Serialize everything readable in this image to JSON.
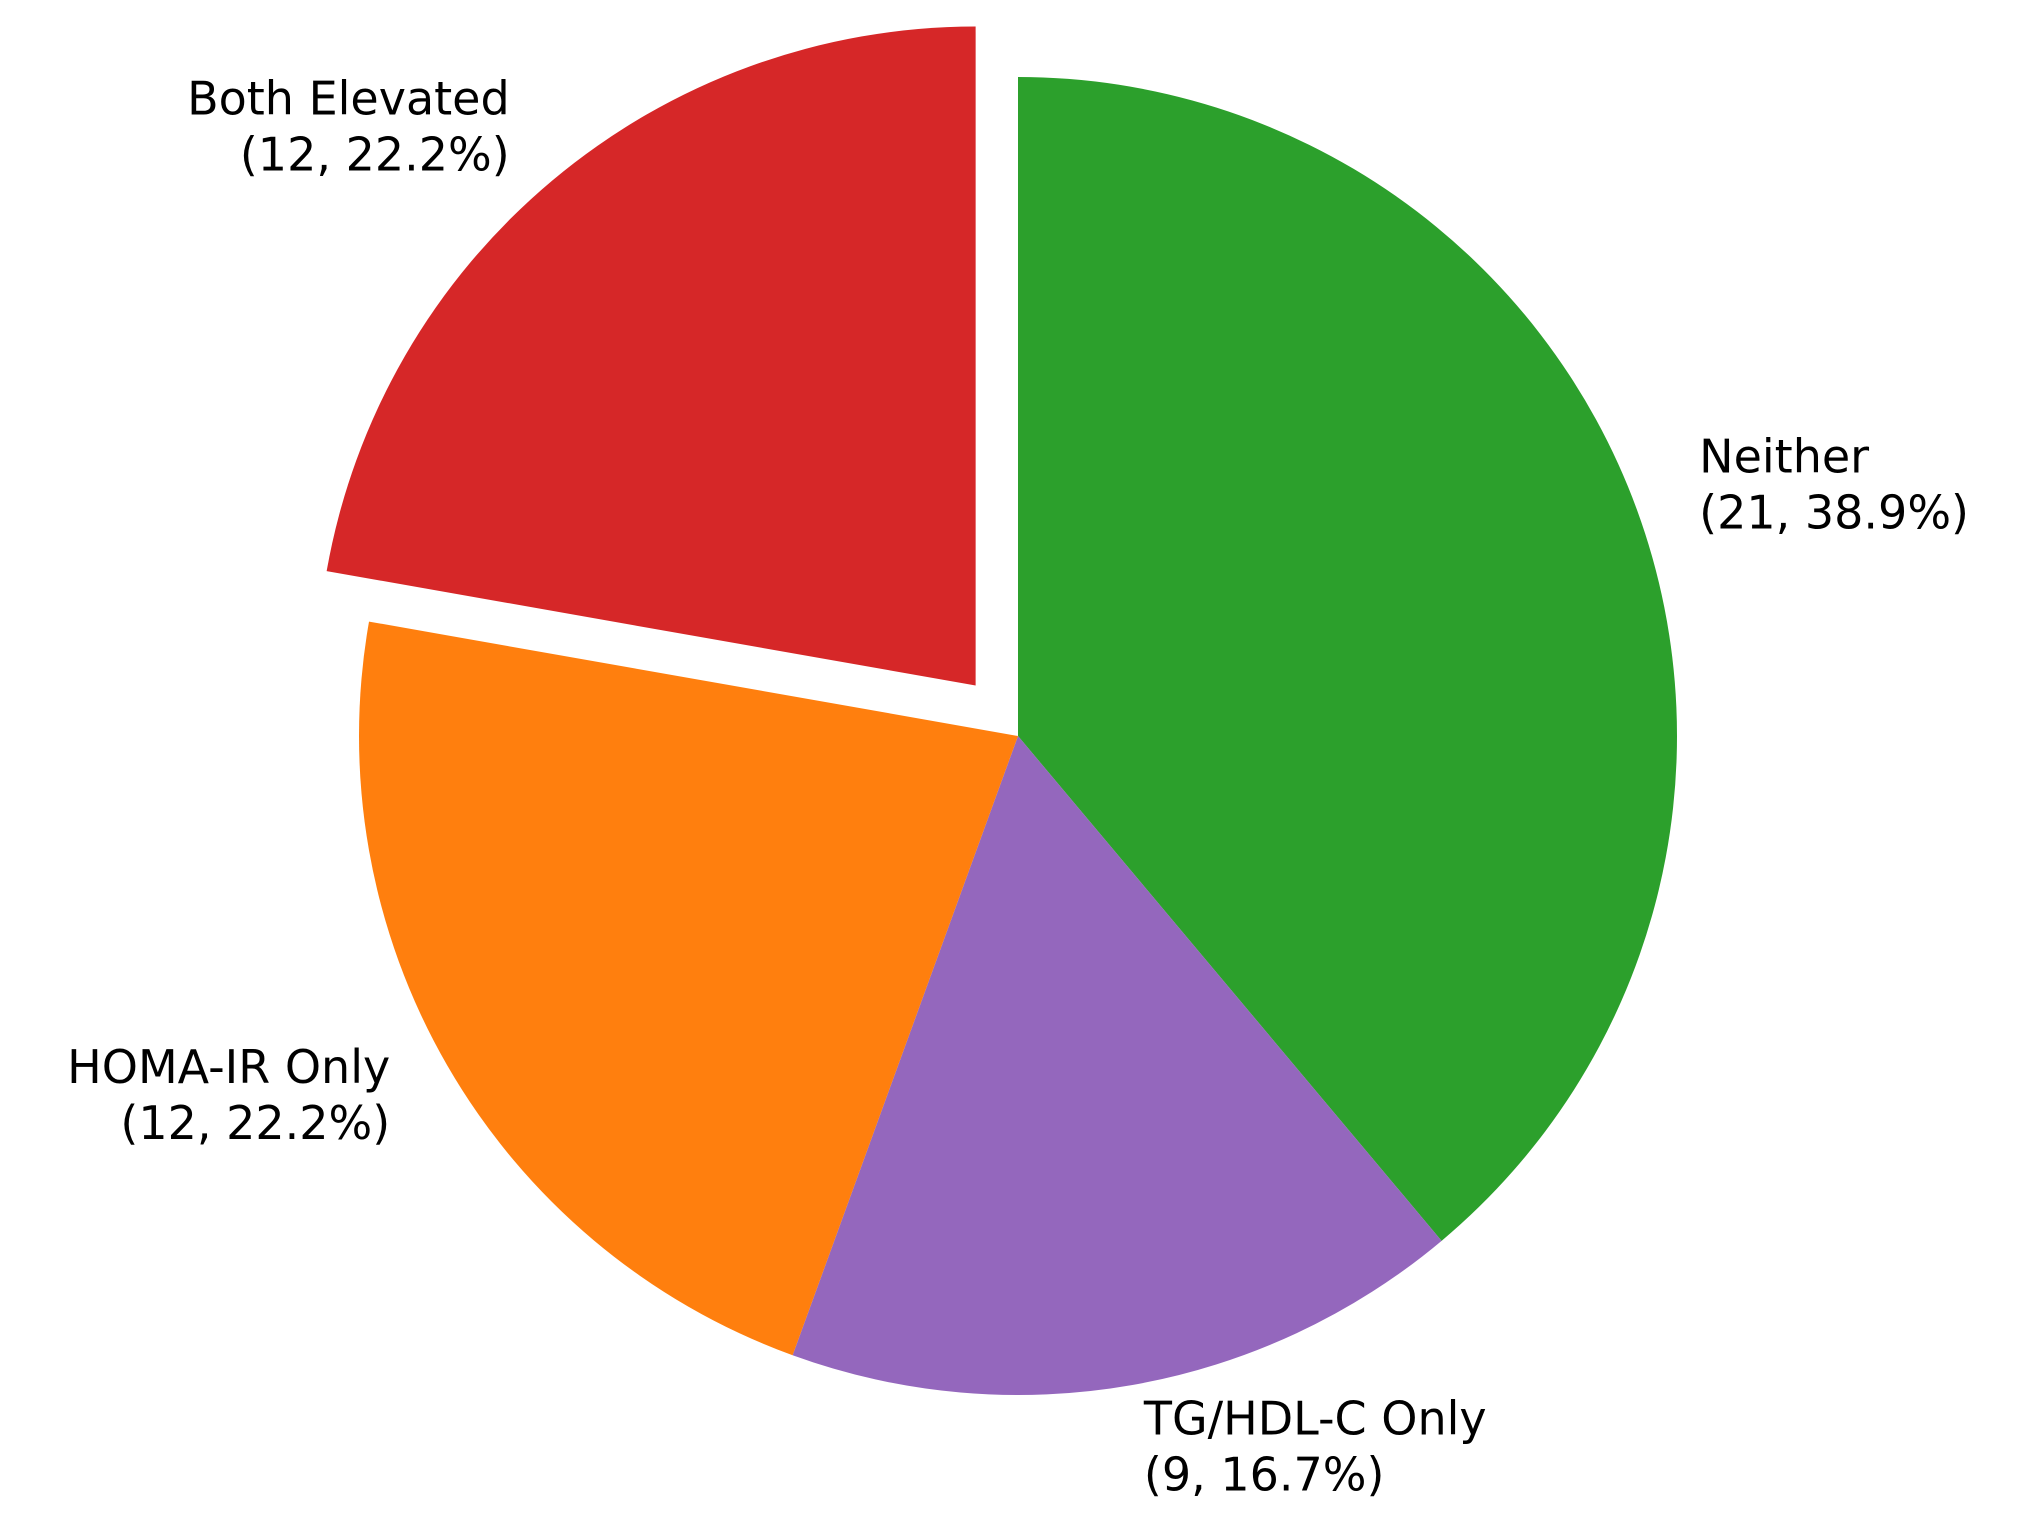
{
  "chart_data": {
    "type": "pie",
    "categories": [
      "Neither",
      "TG/HDL-C Only",
      "HOMA-IR Only",
      "Both Elevated"
    ],
    "values": [
      21,
      9,
      12,
      12
    ],
    "value_labels": [
      "(21, 38.9%)",
      "(9, 16.7%)",
      "(12, 22.2%)",
      "(12, 22.2%)"
    ],
    "colors": [
      "#2ca02c",
      "#9467bd",
      "#ff7f0e",
      "#d62728"
    ],
    "explode": [
      0,
      0,
      0,
      0.1
    ]
  }
}
